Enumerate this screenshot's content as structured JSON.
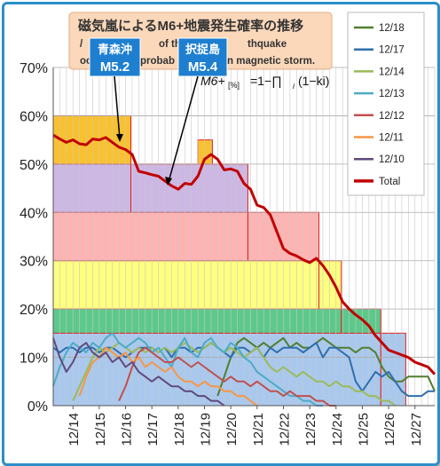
{
  "title": {
    "line1": "磁気嵐によるM6+地震発生確率の推移",
    "line2_parts": [
      "/",
      "of the",
      "thquake"
    ],
    "line3_parts": [
      "oc",
      "probab",
      "n magnetic storm."
    ]
  },
  "formula": {
    "lhs": "M6+",
    "sub": "[%]",
    "rhs": "=1−∏",
    "rhs_sub": "i",
    "rhs2": "(1−ki)"
  },
  "callouts": [
    {
      "place": "青森沖",
      "magnitude": "M5.2"
    },
    {
      "place": "択捉島",
      "magnitude": "M5.4"
    }
  ],
  "colors": {
    "total": "#c00000",
    "s1218": "#4f7f2f",
    "s1217": "#2e6fad",
    "s1214": "#9bbb59",
    "s1213": "#4bacc6",
    "s1212": "#c0504d",
    "s1211": "#f79646",
    "s1210": "#604a7b",
    "frame": "#2c8fc9"
  },
  "chart_data": {
    "type": "line",
    "ylim": [
      0,
      70
    ],
    "ytick_labels": [
      "0%",
      "10%",
      "20%",
      "30%",
      "40%",
      "50%",
      "60%",
      "70%"
    ],
    "ytick_values": [
      0,
      10,
      20,
      30,
      40,
      50,
      60,
      70
    ],
    "x_range": [
      13.25,
      27.75
    ],
    "xtick_labels": [
      "12/14",
      "12/15",
      "12/16",
      "12/17",
      "12/18",
      "12/19",
      "12/20",
      "12/21",
      "12/22",
      "12/23",
      "12/24",
      "12/25",
      "12/26",
      "12/27"
    ],
    "xtick_values": [
      14,
      15,
      16,
      17,
      18,
      19,
      20,
      21,
      22,
      23,
      24,
      25,
      26,
      27
    ],
    "grid": true,
    "legend_position": "right",
    "legend": [
      "12/18",
      "12/17",
      "12/14",
      "12/13",
      "12/12",
      "12/11",
      "12/10",
      "Total"
    ],
    "steps": [
      {
        "x0": 13.25,
        "x1": 16.2,
        "y": 60,
        "fill": "#f9c12e"
      },
      {
        "x0": 18.75,
        "x1": 19.3,
        "y": 55,
        "fill": "#f9c12e"
      },
      {
        "x0": 16.2,
        "x1": 20.65,
        "y": 50,
        "fill": "#cdb7e4"
      },
      {
        "x0": 13.25,
        "x1": 16.2,
        "y": 50,
        "fill": "#cdb7e4"
      },
      {
        "x0": 20.65,
        "x1": 23.35,
        "y": 40,
        "fill": "#ffb3b3"
      },
      {
        "x0": 13.25,
        "x1": 20.65,
        "y": 40,
        "fill": "#ffb3b3"
      },
      {
        "x0": 23.35,
        "x1": 24.2,
        "y": 30,
        "fill": "#ffff80"
      },
      {
        "x0": 13.25,
        "x1": 23.35,
        "y": 30,
        "fill": "#ffff80"
      },
      {
        "x0": 24.2,
        "x1": 25.7,
        "y": 20,
        "fill": "#5cc98a"
      },
      {
        "x0": 13.25,
        "x1": 24.2,
        "y": 20,
        "fill": "#5cc98a"
      },
      {
        "x0": 25.7,
        "x1": 26.65,
        "y": 15,
        "fill": "#a9c8ee"
      },
      {
        "x0": 13.25,
        "x1": 25.7,
        "y": 15,
        "fill": "#a9c8ee"
      }
    ],
    "series": [
      {
        "name": "Total",
        "color": "#c00000",
        "width": 3,
        "x": [
          13.25,
          13.5,
          13.75,
          14.0,
          14.25,
          14.5,
          14.75,
          15.0,
          15.25,
          15.5,
          15.75,
          16.0,
          16.25,
          16.5,
          16.75,
          17.0,
          17.25,
          17.5,
          17.75,
          18.0,
          18.25,
          18.5,
          18.75,
          19.0,
          19.25,
          19.5,
          19.75,
          20.0,
          20.25,
          20.5,
          20.75,
          21.0,
          21.25,
          21.5,
          21.75,
          22.0,
          22.25,
          22.5,
          22.75,
          23.0,
          23.25,
          23.5,
          23.75,
          24.0,
          24.25,
          24.5,
          24.75,
          25.0,
          25.25,
          25.5,
          25.75,
          26.0,
          26.25,
          26.5,
          26.75,
          27.0,
          27.25,
          27.5,
          27.75
        ],
        "y": [
          56.0,
          55.2,
          54.5,
          55.0,
          54.2,
          54.0,
          55.2,
          55.0,
          55.5,
          54.5,
          53.5,
          53.0,
          52.0,
          48.5,
          48.2,
          47.8,
          47.5,
          46.5,
          45.5,
          44.8,
          46.0,
          45.8,
          47.5,
          51.0,
          52.0,
          51.0,
          48.8,
          49.0,
          48.5,
          46.0,
          44.8,
          41.5,
          41.0,
          39.5,
          36.0,
          32.5,
          31.5,
          31.0,
          30.2,
          29.6,
          30.5,
          29.0,
          27.0,
          24.5,
          21.5,
          20.0,
          18.8,
          17.8,
          16.5,
          14.5,
          13.0,
          11.5,
          11.0,
          10.5,
          10.0,
          9.0,
          8.5,
          8.0,
          6.5
        ]
      },
      {
        "name": "12/18",
        "color": "#4f7f2f",
        "width": 2,
        "x": [
          19.5,
          19.75,
          20.0,
          20.25,
          20.5,
          20.75,
          21.0,
          21.25,
          21.5,
          21.75,
          22.0,
          22.25,
          22.5,
          22.75,
          23.0,
          23.25,
          23.5,
          23.75,
          24.0,
          24.25,
          24.5,
          24.75,
          25.0,
          25.25,
          25.5,
          25.75,
          26.0,
          26.25,
          26.5,
          26.75,
          27.0,
          27.25,
          27.5,
          27.75
        ],
        "y": [
          2,
          6,
          10,
          13,
          14,
          13,
          12,
          13,
          12,
          13,
          14,
          12,
          13,
          12,
          12,
          13,
          14,
          13,
          12,
          12,
          12,
          11,
          12,
          12,
          11,
          8,
          6,
          5,
          5,
          6,
          6,
          6,
          6,
          3
        ]
      },
      {
        "name": "12/17",
        "color": "#2e6fad",
        "width": 2,
        "x": [
          13.25,
          13.5,
          13.75,
          14.0,
          14.25,
          14.5,
          14.75,
          15.0,
          15.25,
          15.5,
          15.75,
          16.0,
          16.25,
          16.5,
          16.75,
          17.0,
          17.25,
          17.5,
          17.75,
          18.0,
          18.25,
          18.5,
          18.75,
          19.0,
          19.25,
          19.5,
          19.75,
          20.0,
          20.25,
          20.5,
          20.75,
          21.0,
          21.25,
          21.5,
          21.75,
          22.0,
          22.25,
          22.5,
          22.75,
          23.0,
          23.25,
          23.5,
          23.75,
          24.0,
          24.25,
          24.5,
          24.75,
          25.0,
          25.25,
          25.5,
          25.75,
          26.0,
          26.25,
          26.5,
          26.75,
          27.0,
          27.25,
          27.5,
          27.75
        ],
        "y": [
          12,
          11,
          12,
          12,
          11,
          12,
          12,
          11,
          12,
          12,
          11,
          10,
          11,
          12,
          12,
          12,
          11,
          12,
          10,
          12,
          12,
          11,
          12,
          12,
          13,
          12,
          11,
          10,
          12,
          12,
          11,
          12,
          10,
          12,
          11,
          12,
          12,
          12,
          11,
          12,
          13,
          10,
          12,
          12,
          11,
          10,
          5,
          3,
          5,
          7,
          6,
          7,
          5,
          3,
          2,
          2,
          2,
          3,
          3
        ]
      },
      {
        "name": "12/14",
        "color": "#9bbb59",
        "width": 2,
        "x": [
          14.0,
          14.25,
          14.5,
          14.75,
          15.0,
          15.25,
          15.5,
          15.75,
          16.0,
          16.25,
          16.5,
          16.75,
          17.0,
          17.25,
          17.5,
          17.75,
          18.0,
          18.25,
          18.5,
          18.75,
          19.0,
          19.25,
          19.5,
          19.75,
          20.0,
          20.25,
          20.5,
          20.75,
          21.0,
          21.25,
          21.5,
          21.75,
          22.0,
          22.25,
          22.5,
          22.75,
          23.0,
          23.25,
          23.5,
          23.75,
          24.0,
          24.25,
          24.5,
          24.75,
          25.0,
          25.25,
          25.5,
          25.75,
          26.0,
          26.25
        ],
        "y": [
          1,
          4,
          7,
          10,
          12,
          11,
          12,
          13,
          12,
          11,
          12,
          11,
          12,
          11,
          12,
          11,
          12,
          13,
          12,
          11,
          12,
          13,
          12,
          11,
          12,
          11,
          10,
          11,
          12,
          10,
          8,
          7,
          8,
          7,
          6,
          7,
          6,
          5,
          5,
          4,
          5,
          4,
          4,
          3,
          3,
          2,
          2,
          1,
          1,
          0
        ]
      },
      {
        "name": "12/13",
        "color": "#4bacc6",
        "width": 2,
        "x": [
          13.25,
          13.5,
          13.75,
          14.0,
          14.25,
          14.5,
          14.75,
          15.0,
          15.25,
          15.5,
          15.75,
          16.0,
          16.25,
          16.5,
          16.75,
          17.0,
          17.25,
          17.5,
          17.75,
          18.0,
          18.25,
          18.5,
          18.75,
          19.0,
          19.25,
          19.5,
          19.75,
          20.0,
          20.25,
          20.5,
          20.75,
          21.0,
          21.25,
          21.5,
          21.75,
          22.0,
          22.25,
          22.5,
          22.75,
          23.0,
          23.25,
          23.5
        ],
        "y": [
          4,
          8,
          11,
          13,
          12,
          11,
          13,
          12,
          14,
          15,
          13,
          12,
          13,
          14,
          13,
          11,
          12,
          10,
          8,
          12,
          14,
          11,
          10,
          13,
          14,
          12,
          11,
          13,
          12,
          10,
          9,
          7,
          6,
          5,
          4,
          3,
          2,
          2,
          1,
          1,
          0,
          0
        ]
      },
      {
        "name": "12/12",
        "color": "#c0504d",
        "width": 2,
        "x": [
          15.75,
          16.0,
          16.25,
          16.5,
          16.75,
          17.0,
          17.25,
          17.5,
          17.75,
          18.0,
          18.25,
          18.5,
          18.75,
          19.0,
          19.25,
          19.5,
          19.75,
          20.0,
          20.25,
          20.5,
          20.75,
          21.0,
          21.25,
          21.5,
          21.75,
          22.0,
          22.25,
          22.5,
          22.75,
          23.0,
          23.25,
          23.5,
          23.75,
          24.0
        ],
        "y": [
          1,
          4,
          8,
          11,
          12,
          11,
          10,
          9,
          9,
          10,
          9,
          8,
          9,
          8,
          7,
          6,
          5,
          6,
          5,
          5,
          4,
          5,
          4,
          3,
          3,
          2,
          3,
          2,
          2,
          2,
          1,
          1,
          0,
          0
        ]
      },
      {
        "name": "12/11",
        "color": "#f79646",
        "width": 2,
        "x": [
          14.25,
          14.5,
          14.75,
          15.0,
          15.25,
          15.5,
          15.75,
          16.0,
          16.25,
          16.5,
          16.75,
          17.0,
          17.25,
          17.5,
          17.75,
          18.0,
          18.25,
          18.5,
          18.75,
          19.0,
          19.25,
          19.5,
          19.75,
          20.0,
          20.25,
          20.5,
          20.75,
          21.0
        ],
        "y": [
          2,
          6,
          9,
          10,
          12,
          11,
          10,
          11,
          9,
          10,
          8,
          9,
          8,
          7,
          8,
          6,
          5,
          5,
          4,
          5,
          4,
          4,
          3,
          3,
          2,
          2,
          1,
          0
        ]
      },
      {
        "name": "12/10",
        "color": "#604a7b",
        "width": 2,
        "x": [
          13.25,
          13.5,
          13.75,
          14.0,
          14.25,
          14.5,
          14.75,
          15.0,
          15.25,
          15.5,
          15.75,
          16.0,
          16.25,
          16.5,
          16.75,
          17.0,
          17.25,
          17.5,
          17.75,
          18.0,
          18.25,
          18.5,
          18.75,
          19.0,
          19.25,
          19.5,
          19.75
        ],
        "y": [
          14,
          10,
          7,
          9,
          12,
          13,
          11,
          10,
          11,
          9,
          10,
          8,
          9,
          7,
          6,
          5,
          6,
          5,
          4,
          4,
          3,
          3,
          2,
          2,
          1,
          1,
          0
        ]
      }
    ]
  }
}
